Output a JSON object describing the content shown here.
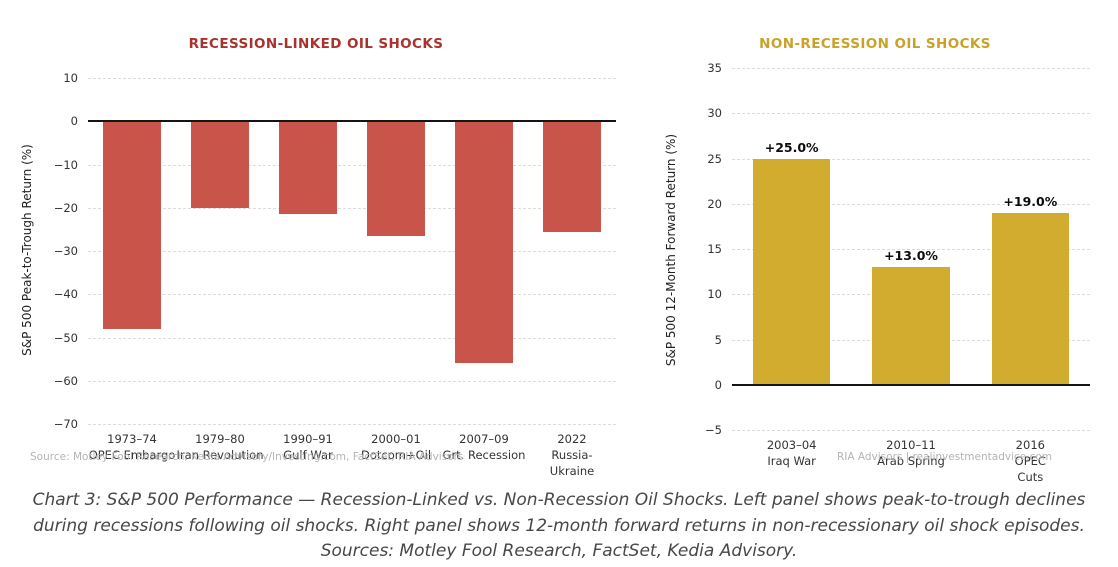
{
  "chart_data": [
    {
      "type": "bar",
      "title": "RECESSION-LINKED OIL SHOCKS",
      "title_color": "#a8322c",
      "bar_color": "#c9544a",
      "ylabel": "S&P 500 Peak-to-Trough Return (%)",
      "xlabel": "",
      "ylim": [
        -70,
        10
      ],
      "yticks": [
        10,
        0,
        -10,
        -20,
        -30,
        -40,
        -50,
        -60,
        -70
      ],
      "grid": "horizontal-dashed",
      "legend": "none",
      "categories": [
        "1973–74\nOPEC Embargo",
        "1979–80\nIran Revolution",
        "1990–91\nGulf War",
        "2000–01\nDotcom+Oil",
        "2007–09\nGrt. Recession",
        "2022\nRussia-Ukraine"
      ],
      "values": [
        -48,
        -20,
        -21.5,
        -26.5,
        -56,
        -25.5
      ]
    },
    {
      "type": "bar",
      "title": "NON-RECESSION OIL SHOCKS",
      "title_color": "#c9a227",
      "bar_color": "#d1ac2f",
      "ylabel": "S&P 500 12-Month Forward Return (%)",
      "xlabel": "",
      "ylim": [
        -5,
        35
      ],
      "yticks": [
        35,
        30,
        25,
        20,
        15,
        10,
        5,
        0,
        -5
      ],
      "grid": "horizontal-dashed",
      "legend": "none",
      "categories": [
        "2003–04\nIraq War",
        "2010–11\nArab Spring",
        "2016\nOPEC Cuts"
      ],
      "values": [
        25.0,
        13.0,
        19.0
      ],
      "data_labels": [
        "+25.0%",
        "+13.0%",
        "+19.0%"
      ]
    }
  ],
  "source_note": "Source: Motley Fool Research, Kedia Advisory/Investing.com, FactSet, RIA Advisors",
  "watermark": "RIA Advisors | realinvestmentadvice.com",
  "caption": "Chart 3: S&P 500 Performance — Recession-Linked vs. Non-Recession Oil Shocks. Left panel shows peak-to-trough declines during recessions following oil shocks. Right panel shows 12-month forward returns in non-recessionary oil shock episodes. Sources: Motley Fool Research, FactSet, Kedia Advisory."
}
